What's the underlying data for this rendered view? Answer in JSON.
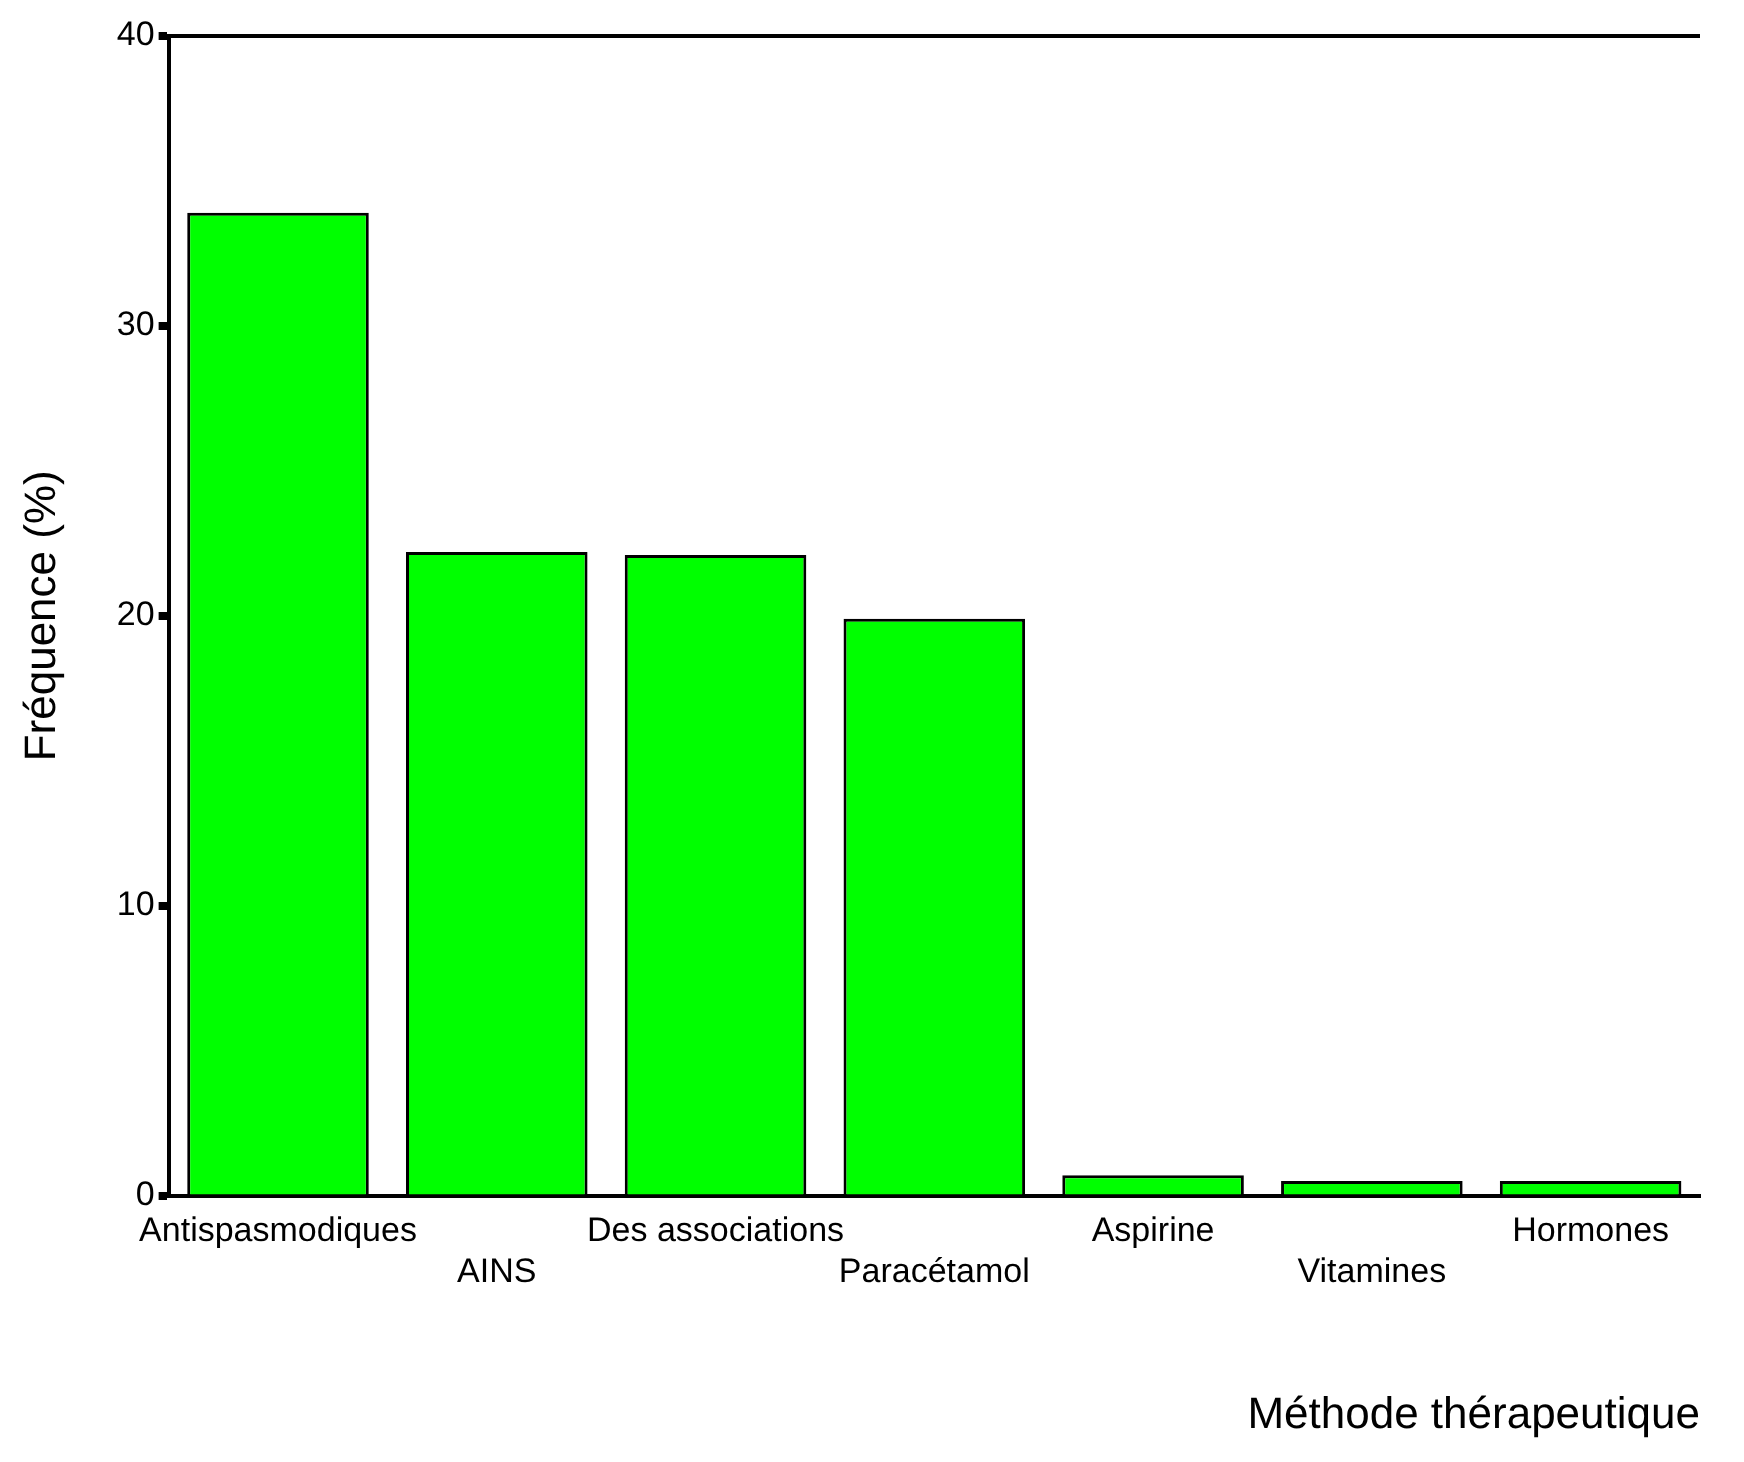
{
  "chart_data": {
    "type": "bar",
    "xlabel": "Méthode thérapeutique",
    "ylabel": "Fréquence (%)",
    "categories": [
      "Antispasmodiques",
      "AINS",
      "Des associations",
      "Paracétamol",
      "Aspirine",
      "Vitamines",
      "Hormones"
    ],
    "values": [
      33.9,
      22.2,
      22.1,
      19.9,
      0.7,
      0.5,
      0.5
    ],
    "color": "#00ff00",
    "ylim": [
      0,
      40
    ],
    "yticks": [
      0,
      10,
      20,
      30,
      40
    ],
    "grid": false,
    "legend": false
  }
}
